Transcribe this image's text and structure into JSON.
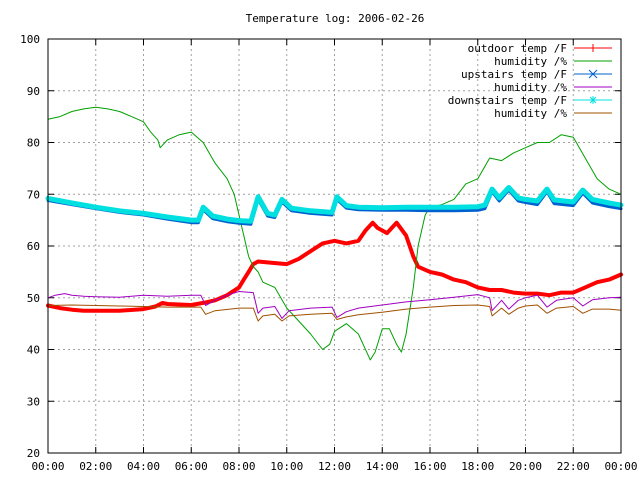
{
  "chart_data": {
    "type": "line",
    "title": "Temperature log: 2006-02-26",
    "xlabel": "",
    "ylabel": "",
    "xlim": [
      0,
      24
    ],
    "ylim": [
      20,
      100
    ],
    "x_ticks": [
      {
        "v": 0,
        "label": "00:00"
      },
      {
        "v": 2,
        "label": "02:00"
      },
      {
        "v": 4,
        "label": "04:00"
      },
      {
        "v": 6,
        "label": "06:00"
      },
      {
        "v": 8,
        "label": "08:00"
      },
      {
        "v": 10,
        "label": "10:00"
      },
      {
        "v": 12,
        "label": "12:00"
      },
      {
        "v": 14,
        "label": "14:00"
      },
      {
        "v": 16,
        "label": "16:00"
      },
      {
        "v": 18,
        "label": "18:00"
      },
      {
        "v": 20,
        "label": "20:00"
      },
      {
        "v": 22,
        "label": "22:00"
      },
      {
        "v": 24,
        "label": "00:00"
      }
    ],
    "y_ticks": [
      {
        "v": 20,
        "label": "20"
      },
      {
        "v": 30,
        "label": "30"
      },
      {
        "v": 40,
        "label": "40"
      },
      {
        "v": 50,
        "label": "50"
      },
      {
        "v": 60,
        "label": "60"
      },
      {
        "v": 70,
        "label": "70"
      },
      {
        "v": 80,
        "label": "80"
      },
      {
        "v": 90,
        "label": "90"
      },
      {
        "v": 100,
        "label": "100"
      }
    ],
    "grid": true,
    "legend_position": "top-right",
    "series": [
      {
        "name": "outdoor temp /F",
        "color": "#ff0000",
        "marker": "plus",
        "width": 4,
        "points": [
          [
            0,
            48.5
          ],
          [
            0.5,
            48
          ],
          [
            1,
            47.7
          ],
          [
            1.5,
            47.5
          ],
          [
            2,
            47.5
          ],
          [
            3,
            47.5
          ],
          [
            4,
            47.8
          ],
          [
            4.5,
            48.3
          ],
          [
            4.8,
            49
          ],
          [
            5,
            48.8
          ],
          [
            6,
            48.6
          ],
          [
            6.5,
            49
          ],
          [
            7,
            49.5
          ],
          [
            7.5,
            50.5
          ],
          [
            8,
            52
          ],
          [
            8.2,
            53.5
          ],
          [
            8.4,
            55
          ],
          [
            8.6,
            56.5
          ],
          [
            8.8,
            57
          ],
          [
            9.3,
            56.8
          ],
          [
            10,
            56.5
          ],
          [
            10.5,
            57.5
          ],
          [
            11,
            59
          ],
          [
            11.5,
            60.5
          ],
          [
            12,
            61
          ],
          [
            12.5,
            60.5
          ],
          [
            13,
            61
          ],
          [
            13.3,
            63
          ],
          [
            13.6,
            64.5
          ],
          [
            13.8,
            63.5
          ],
          [
            14.2,
            62.5
          ],
          [
            14.6,
            64.5
          ],
          [
            15,
            62
          ],
          [
            15.3,
            58
          ],
          [
            15.5,
            56
          ],
          [
            16,
            55
          ],
          [
            16.5,
            54.5
          ],
          [
            17,
            53.5
          ],
          [
            17.5,
            53
          ],
          [
            18,
            52
          ],
          [
            18.5,
            51.5
          ],
          [
            19,
            51.5
          ],
          [
            19.5,
            51
          ],
          [
            20,
            50.8
          ],
          [
            20.5,
            50.8
          ],
          [
            21,
            50.5
          ],
          [
            21.5,
            51
          ],
          [
            22,
            51
          ],
          [
            22.5,
            52
          ],
          [
            23,
            53
          ],
          [
            23.5,
            53.5
          ],
          [
            24,
            54.5
          ]
        ]
      },
      {
        "name": "humidity /%",
        "color": "#00a000",
        "marker": "none",
        "width": 1,
        "points": [
          [
            0,
            84.5
          ],
          [
            0.5,
            85
          ],
          [
            1,
            86
          ],
          [
            1.5,
            86.5
          ],
          [
            2,
            86.8
          ],
          [
            2.5,
            86.5
          ],
          [
            3,
            86
          ],
          [
            3.5,
            85
          ],
          [
            4,
            84
          ],
          [
            4.3,
            82
          ],
          [
            4.6,
            80.5
          ],
          [
            4.7,
            79
          ],
          [
            5,
            80.5
          ],
          [
            5.5,
            81.5
          ],
          [
            6,
            82
          ],
          [
            6.5,
            80
          ],
          [
            7,
            76
          ],
          [
            7.5,
            73
          ],
          [
            7.8,
            70
          ],
          [
            8,
            66
          ],
          [
            8.2,
            62
          ],
          [
            8.4,
            58
          ],
          [
            8.6,
            56
          ],
          [
            8.8,
            55
          ],
          [
            9,
            53
          ],
          [
            9.5,
            52
          ],
          [
            10,
            48
          ],
          [
            10.5,
            45.5
          ],
          [
            11,
            43
          ],
          [
            11.5,
            40
          ],
          [
            11.8,
            41
          ],
          [
            12,
            43.5
          ],
          [
            12.5,
            45
          ],
          [
            13,
            43
          ],
          [
            13.2,
            41
          ],
          [
            13.5,
            38
          ],
          [
            13.7,
            39.5
          ],
          [
            14,
            44
          ],
          [
            14.3,
            44
          ],
          [
            14.6,
            41
          ],
          [
            14.8,
            39.5
          ],
          [
            15,
            43
          ],
          [
            15.3,
            52
          ],
          [
            15.5,
            60
          ],
          [
            15.8,
            66
          ],
          [
            16,
            67.5
          ],
          [
            16.5,
            68
          ],
          [
            17,
            69
          ],
          [
            17.5,
            72
          ],
          [
            18,
            73
          ],
          [
            18.5,
            77
          ],
          [
            19,
            76.5
          ],
          [
            19.5,
            78
          ],
          [
            20,
            79
          ],
          [
            20.5,
            80
          ],
          [
            21,
            80
          ],
          [
            21.5,
            81.5
          ],
          [
            22,
            81
          ],
          [
            22.5,
            77
          ],
          [
            23,
            73
          ],
          [
            23.5,
            71
          ],
          [
            24,
            70
          ]
        ]
      },
      {
        "name": "upstairs temp /F",
        "color": "#0060d0",
        "marker": "cross",
        "width": 3,
        "points": [
          [
            0,
            68.8
          ],
          [
            1,
            68
          ],
          [
            2,
            67.2
          ],
          [
            3,
            66.5
          ],
          [
            4,
            66
          ],
          [
            5,
            65.2
          ],
          [
            6,
            64.5
          ],
          [
            6.3,
            64.5
          ],
          [
            6.5,
            67
          ],
          [
            6.9,
            65.3
          ],
          [
            7.5,
            64.7
          ],
          [
            8,
            64.4
          ],
          [
            8.5,
            64.2
          ],
          [
            8.8,
            69
          ],
          [
            9.2,
            65.8
          ],
          [
            9.5,
            65.5
          ],
          [
            9.8,
            68.5
          ],
          [
            10.2,
            66.8
          ],
          [
            11,
            66.3
          ],
          [
            11.9,
            66
          ],
          [
            12.1,
            69
          ],
          [
            12.5,
            67.3
          ],
          [
            13,
            67
          ],
          [
            14,
            66.9
          ],
          [
            15,
            66.9
          ],
          [
            16,
            66.8
          ],
          [
            17,
            66.8
          ],
          [
            18,
            66.9
          ],
          [
            18.3,
            67.2
          ],
          [
            18.6,
            70.5
          ],
          [
            18.9,
            68.7
          ],
          [
            19.3,
            70.8
          ],
          [
            19.7,
            68.7
          ],
          [
            20,
            68.4
          ],
          [
            20.5,
            68
          ],
          [
            20.9,
            70.5
          ],
          [
            21.2,
            68.2
          ],
          [
            22,
            67.8
          ],
          [
            22.4,
            70.2
          ],
          [
            22.8,
            68.3
          ],
          [
            23.5,
            67.6
          ],
          [
            24,
            67.2
          ]
        ]
      },
      {
        "name": "humidity /%",
        "color": "#a000c0",
        "marker": "none",
        "width": 1,
        "points": [
          [
            0,
            50
          ],
          [
            0.3,
            50.5
          ],
          [
            0.7,
            50.8
          ],
          [
            1,
            50.5
          ],
          [
            1.5,
            50.3
          ],
          [
            2,
            50.2
          ],
          [
            3,
            50.1
          ],
          [
            4,
            50.5
          ],
          [
            5,
            50.3
          ],
          [
            6,
            50.5
          ],
          [
            6.4,
            50.5
          ],
          [
            6.6,
            48.5
          ],
          [
            7,
            49.5
          ],
          [
            7.5,
            50.5
          ],
          [
            8,
            51.2
          ],
          [
            8.6,
            51
          ],
          [
            8.8,
            47
          ],
          [
            9,
            48
          ],
          [
            9.5,
            48.3
          ],
          [
            9.8,
            46
          ],
          [
            10.1,
            47.5
          ],
          [
            11,
            48
          ],
          [
            11.9,
            48.2
          ],
          [
            12.1,
            46.2
          ],
          [
            12.5,
            47.3
          ],
          [
            13,
            48
          ],
          [
            14,
            48.6
          ],
          [
            15,
            49.2
          ],
          [
            16,
            49.6
          ],
          [
            17,
            50.1
          ],
          [
            18,
            50.6
          ],
          [
            18.5,
            50
          ],
          [
            18.6,
            47.5
          ],
          [
            19,
            49.5
          ],
          [
            19.3,
            47.8
          ],
          [
            19.7,
            49.5
          ],
          [
            20,
            50
          ],
          [
            20.5,
            50.5
          ],
          [
            20.9,
            48.2
          ],
          [
            21.3,
            49.5
          ],
          [
            22,
            50
          ],
          [
            22.4,
            48.4
          ],
          [
            22.8,
            49.6
          ],
          [
            23.5,
            50
          ],
          [
            24,
            50.1
          ]
        ]
      },
      {
        "name": "downstairs temp /F",
        "color": "#00e0e0",
        "marker": "star",
        "width": 5,
        "points": [
          [
            0,
            69.2
          ],
          [
            1,
            68.3
          ],
          [
            2,
            67.5
          ],
          [
            3,
            66.8
          ],
          [
            4,
            66.3
          ],
          [
            5,
            65.6
          ],
          [
            6,
            65
          ],
          [
            6.3,
            65
          ],
          [
            6.5,
            67.5
          ],
          [
            6.9,
            65.8
          ],
          [
            7.5,
            65.2
          ],
          [
            8,
            64.9
          ],
          [
            8.5,
            64.8
          ],
          [
            8.8,
            69.5
          ],
          [
            9.2,
            66.3
          ],
          [
            9.5,
            66
          ],
          [
            9.8,
            69
          ],
          [
            10.2,
            67.3
          ],
          [
            11,
            66.8
          ],
          [
            11.9,
            66.5
          ],
          [
            12.1,
            69.5
          ],
          [
            12.5,
            67.8
          ],
          [
            13,
            67.5
          ],
          [
            14,
            67.4
          ],
          [
            15,
            67.5
          ],
          [
            16,
            67.5
          ],
          [
            17,
            67.5
          ],
          [
            18,
            67.6
          ],
          [
            18.3,
            67.9
          ],
          [
            18.6,
            71
          ],
          [
            18.9,
            69.3
          ],
          [
            19.3,
            71.3
          ],
          [
            19.7,
            69.3
          ],
          [
            20,
            69
          ],
          [
            20.5,
            68.7
          ],
          [
            20.9,
            71
          ],
          [
            21.2,
            68.9
          ],
          [
            22,
            68.5
          ],
          [
            22.4,
            70.8
          ],
          [
            22.8,
            69
          ],
          [
            23.5,
            68.3
          ],
          [
            24,
            67.9
          ]
        ]
      },
      {
        "name": "humidity /%",
        "color": "#a05000",
        "marker": "none",
        "width": 1,
        "points": [
          [
            0,
            48.5
          ],
          [
            1,
            48.6
          ],
          [
            2,
            48.5
          ],
          [
            3,
            48.4
          ],
          [
            4,
            48.3
          ],
          [
            5,
            48.2
          ],
          [
            6,
            48.2
          ],
          [
            6.4,
            48.2
          ],
          [
            6.6,
            46.8
          ],
          [
            7,
            47.5
          ],
          [
            8,
            48
          ],
          [
            8.6,
            48
          ],
          [
            8.8,
            45.5
          ],
          [
            9,
            46.5
          ],
          [
            9.5,
            46.8
          ],
          [
            9.8,
            45.5
          ],
          [
            10.1,
            46.5
          ],
          [
            11,
            46.8
          ],
          [
            11.9,
            47
          ],
          [
            12.1,
            45.8
          ],
          [
            12.5,
            46.3
          ],
          [
            13,
            46.7
          ],
          [
            14,
            47.2
          ],
          [
            15,
            47.8
          ],
          [
            16,
            48.2
          ],
          [
            17,
            48.5
          ],
          [
            18,
            48.6
          ],
          [
            18.5,
            48.3
          ],
          [
            18.6,
            46.5
          ],
          [
            19,
            48
          ],
          [
            19.3,
            46.8
          ],
          [
            19.7,
            48
          ],
          [
            20,
            48.4
          ],
          [
            20.5,
            48.6
          ],
          [
            20.9,
            47
          ],
          [
            21.3,
            48
          ],
          [
            22,
            48.3
          ],
          [
            22.4,
            47
          ],
          [
            22.8,
            47.8
          ],
          [
            23.5,
            47.8
          ],
          [
            24,
            47.6
          ]
        ]
      }
    ]
  }
}
